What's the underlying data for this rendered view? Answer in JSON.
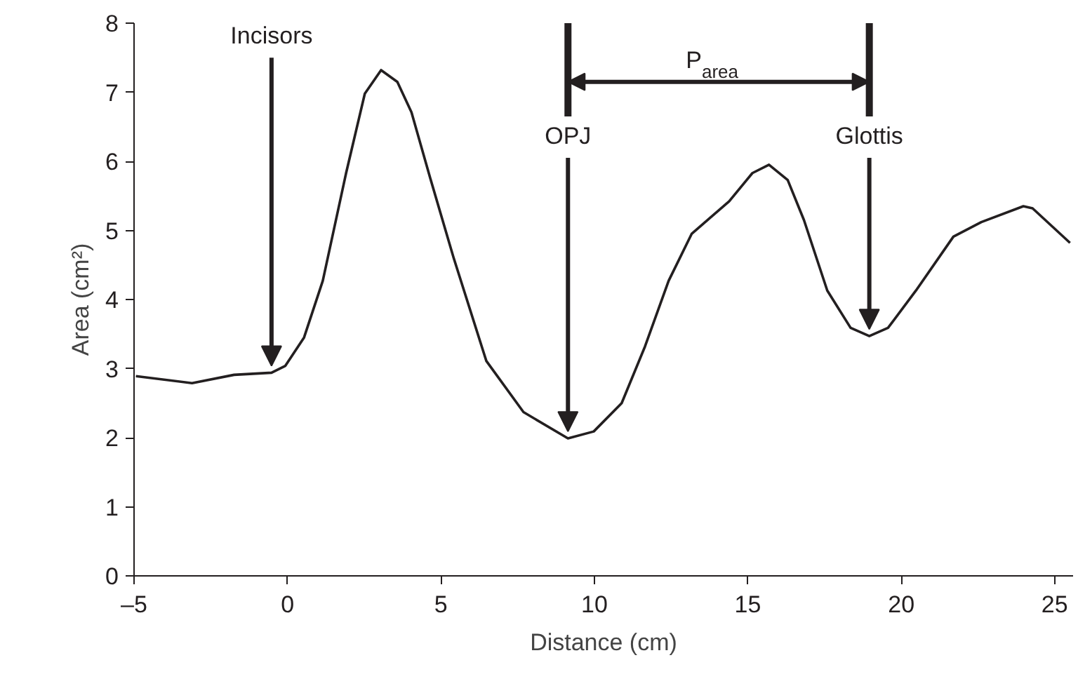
{
  "chart_data": {
    "type": "line",
    "xlabel": "Distance (cm)",
    "ylabel": "Area (cm²)",
    "x": [
      -4.94,
      -3.11,
      -1.74,
      -0.52,
      -0.07,
      0.54,
      1.15,
      1.91,
      2.52,
      3.05,
      3.58,
      4.04,
      4.65,
      5.41,
      6.48,
      7.69,
      9.14,
      9.98,
      10.89,
      11.65,
      12.42,
      13.17,
      14.39,
      15.15,
      15.69,
      16.3,
      16.83,
      17.59,
      18.35,
      18.96,
      19.57,
      20.48,
      21.7,
      22.61,
      23.98,
      24.28,
      25.5
    ],
    "series": [
      {
        "color": "#231f20",
        "values": [
          2.89,
          2.79,
          2.91,
          2.94,
          3.04,
          3.45,
          4.27,
          5.83,
          6.98,
          7.32,
          7.15,
          6.71,
          5.76,
          4.61,
          3.11,
          2.37,
          1.99,
          2.09,
          2.5,
          3.32,
          4.27,
          4.95,
          5.42,
          5.83,
          5.95,
          5.73,
          5.15,
          4.13,
          3.59,
          3.47,
          3.59,
          4.13,
          4.91,
          5.12,
          5.35,
          5.32,
          4.82
        ]
      }
    ],
    "xlim": [
      -5,
      25.6
    ],
    "ylim": [
      0,
      8
    ],
    "xticks": [
      {
        "value": -5,
        "label": "–5"
      },
      0,
      5,
      10,
      15,
      20,
      25
    ],
    "yticks": [
      0,
      1,
      2,
      3,
      4,
      5,
      6,
      7,
      8
    ],
    "grid": false,
    "marker": "none",
    "line_style": "solid",
    "annotations": [
      {
        "text": "Incisors",
        "x": -0.52,
        "y": 2.94
      },
      {
        "text": "OPJ",
        "x": 9.14,
        "y": 1.99
      },
      {
        "text": "Glottis",
        "x": 18.96,
        "y": 3.47
      },
      "P$_{area}$"
    ]
  }
}
